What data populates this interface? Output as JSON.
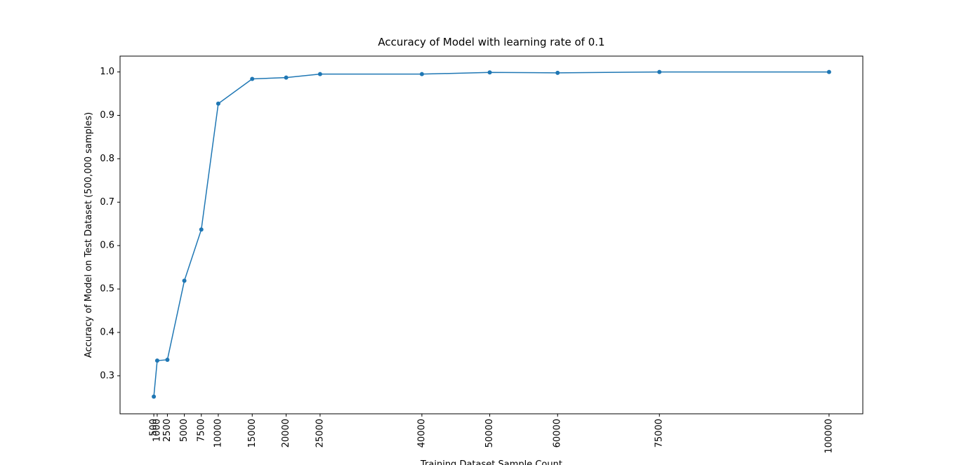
{
  "chart_data": {
    "type": "line",
    "title": "Accuracy of Model with learning rate of 0.1",
    "x_label": "Training Dataset Sample Count",
    "y_label": "Accuracy of Model on Test Dataset (500,000 samples)",
    "x": [
      500,
      1000,
      2500,
      5000,
      7500,
      10000,
      15000,
      20000,
      25000,
      40000,
      50000,
      60000,
      75000,
      100000
    ],
    "series": [
      {
        "name": "accuracy",
        "color": "#1f77b4",
        "values": [
          0.252,
          0.335,
          0.337,
          0.519,
          0.637,
          0.927,
          0.984,
          0.987,
          0.995,
          0.995,
          0.999,
          0.998,
          1.0,
          1.0
        ]
      }
    ],
    "xlim": [
      -4475,
      104975
    ],
    "xticks": [
      500,
      1000,
      2500,
      5000,
      7500,
      10000,
      15000,
      20000,
      25000,
      40000,
      50000,
      60000,
      75000,
      100000
    ],
    "ylim": [
      0.2125,
      1.0365
    ],
    "yticks": [
      0.3,
      0.4,
      0.5,
      0.6,
      0.7,
      0.8,
      0.9,
      {
        "value": 1,
        "label": "1.0"
      }
    ],
    "grid": false
  }
}
